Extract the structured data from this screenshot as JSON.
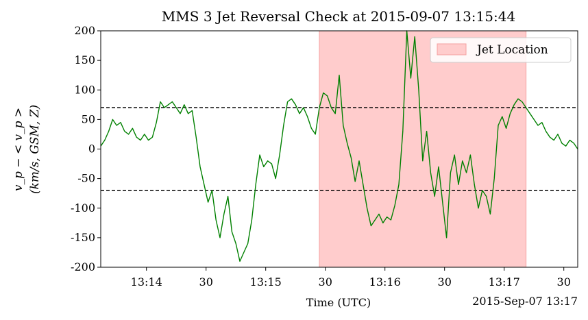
{
  "chart_data": {
    "type": "line",
    "title": "MMS 3 Jet Reversal Check at 2015-09-07 13:15:44",
    "xlabel": "Time (UTC)",
    "x_offset_label": "2015-Sep-07 13:17",
    "ylabel_line1": "v_p − < v_p >",
    "ylabel_line2": "(km/s, GSM, Z)",
    "xlim": [
      "13:13:37",
      "13:17:37"
    ],
    "ylim": [
      -200,
      200
    ],
    "x_ticks": [
      {
        "time": "13:14:00",
        "label": "13:14"
      },
      {
        "time": "13:14:30",
        "label": "30"
      },
      {
        "time": "13:15:00",
        "label": "13:15"
      },
      {
        "time": "13:15:30",
        "label": "30"
      },
      {
        "time": "13:16:00",
        "label": "13:16"
      },
      {
        "time": "13:16:30",
        "label": "30"
      },
      {
        "time": "13:17:00",
        "label": "13:17"
      },
      {
        "time": "13:17:30",
        "label": "30"
      }
    ],
    "y_ticks": [
      200,
      150,
      100,
      50,
      0,
      -50,
      -100,
      -150,
      -200
    ],
    "thresholds": [
      70,
      -70
    ],
    "jet_region": {
      "start": "13:15:27",
      "end": "13:17:11",
      "label": "Jet Location",
      "color": "#ffcccc"
    },
    "legend_position": "top-right",
    "series": [
      {
        "color": "#008000",
        "points": [
          [
            "13:13:37",
            5
          ],
          [
            "13:13:39",
            15
          ],
          [
            "13:13:41",
            30
          ],
          [
            "13:13:43",
            50
          ],
          [
            "13:13:45",
            40
          ],
          [
            "13:13:47",
            45
          ],
          [
            "13:13:49",
            30
          ],
          [
            "13:13:51",
            25
          ],
          [
            "13:13:53",
            35
          ],
          [
            "13:13:55",
            20
          ],
          [
            "13:13:57",
            15
          ],
          [
            "13:13:59",
            25
          ],
          [
            "13:14:01",
            15
          ],
          [
            "13:14:03",
            20
          ],
          [
            "13:14:05",
            45
          ],
          [
            "13:14:07",
            80
          ],
          [
            "13:14:09",
            70
          ],
          [
            "13:14:11",
            75
          ],
          [
            "13:14:13",
            80
          ],
          [
            "13:14:15",
            70
          ],
          [
            "13:14:17",
            60
          ],
          [
            "13:14:19",
            75
          ],
          [
            "13:14:21",
            60
          ],
          [
            "13:14:23",
            65
          ],
          [
            "13:14:25",
            20
          ],
          [
            "13:14:27",
            -30
          ],
          [
            "13:14:29",
            -60
          ],
          [
            "13:14:31",
            -90
          ],
          [
            "13:14:33",
            -70
          ],
          [
            "13:14:35",
            -120
          ],
          [
            "13:14:37",
            -150
          ],
          [
            "13:14:39",
            -110
          ],
          [
            "13:14:41",
            -80
          ],
          [
            "13:14:43",
            -140
          ],
          [
            "13:14:45",
            -160
          ],
          [
            "13:14:47",
            -190
          ],
          [
            "13:14:49",
            -175
          ],
          [
            "13:14:51",
            -160
          ],
          [
            "13:14:53",
            -120
          ],
          [
            "13:14:55",
            -60
          ],
          [
            "13:14:57",
            -10
          ],
          [
            "13:14:59",
            -30
          ],
          [
            "13:15:01",
            -20
          ],
          [
            "13:15:03",
            -25
          ],
          [
            "13:15:05",
            -50
          ],
          [
            "13:15:07",
            -10
          ],
          [
            "13:15:09",
            40
          ],
          [
            "13:15:11",
            80
          ],
          [
            "13:15:13",
            85
          ],
          [
            "13:15:15",
            75
          ],
          [
            "13:15:17",
            60
          ],
          [
            "13:15:19",
            70
          ],
          [
            "13:15:21",
            55
          ],
          [
            "13:15:23",
            35
          ],
          [
            "13:15:25",
            25
          ],
          [
            "13:15:27",
            70
          ],
          [
            "13:15:29",
            95
          ],
          [
            "13:15:31",
            90
          ],
          [
            "13:15:33",
            70
          ],
          [
            "13:15:35",
            60
          ],
          [
            "13:15:37",
            125
          ],
          [
            "13:15:39",
            40
          ],
          [
            "13:15:41",
            10
          ],
          [
            "13:15:43",
            -15
          ],
          [
            "13:15:45",
            -55
          ],
          [
            "13:15:47",
            -20
          ],
          [
            "13:15:49",
            -60
          ],
          [
            "13:15:51",
            -100
          ],
          [
            "13:15:53",
            -130
          ],
          [
            "13:15:55",
            -120
          ],
          [
            "13:15:57",
            -110
          ],
          [
            "13:15:59",
            -125
          ],
          [
            "13:16:01",
            -115
          ],
          [
            "13:16:03",
            -120
          ],
          [
            "13:16:05",
            -95
          ],
          [
            "13:16:07",
            -60
          ],
          [
            "13:16:09",
            30
          ],
          [
            "13:16:11",
            200
          ],
          [
            "13:16:13",
            120
          ],
          [
            "13:16:15",
            190
          ],
          [
            "13:16:17",
            100
          ],
          [
            "13:16:19",
            -20
          ],
          [
            "13:16:21",
            30
          ],
          [
            "13:16:23",
            -40
          ],
          [
            "13:16:25",
            -80
          ],
          [
            "13:16:27",
            -30
          ],
          [
            "13:16:29",
            -90
          ],
          [
            "13:16:31",
            -150
          ],
          [
            "13:16:33",
            -40
          ],
          [
            "13:16:35",
            -10
          ],
          [
            "13:16:37",
            -60
          ],
          [
            "13:16:39",
            -20
          ],
          [
            "13:16:41",
            -40
          ],
          [
            "13:16:43",
            -10
          ],
          [
            "13:16:45",
            -60
          ],
          [
            "13:16:47",
            -100
          ],
          [
            "13:16:49",
            -70
          ],
          [
            "13:16:51",
            -80
          ],
          [
            "13:16:53",
            -110
          ],
          [
            "13:16:55",
            -50
          ],
          [
            "13:16:57",
            40
          ],
          [
            "13:16:59",
            55
          ],
          [
            "13:17:01",
            35
          ],
          [
            "13:17:03",
            60
          ],
          [
            "13:17:05",
            75
          ],
          [
            "13:17:07",
            85
          ],
          [
            "13:17:09",
            80
          ],
          [
            "13:17:11",
            70
          ],
          [
            "13:17:13",
            60
          ],
          [
            "13:17:15",
            50
          ],
          [
            "13:17:17",
            40
          ],
          [
            "13:17:19",
            45
          ],
          [
            "13:17:21",
            30
          ],
          [
            "13:17:23",
            20
          ],
          [
            "13:17:25",
            15
          ],
          [
            "13:17:27",
            25
          ],
          [
            "13:17:29",
            10
          ],
          [
            "13:17:31",
            5
          ],
          [
            "13:17:33",
            15
          ],
          [
            "13:17:35",
            10
          ],
          [
            "13:17:37",
            0
          ]
        ]
      }
    ]
  }
}
